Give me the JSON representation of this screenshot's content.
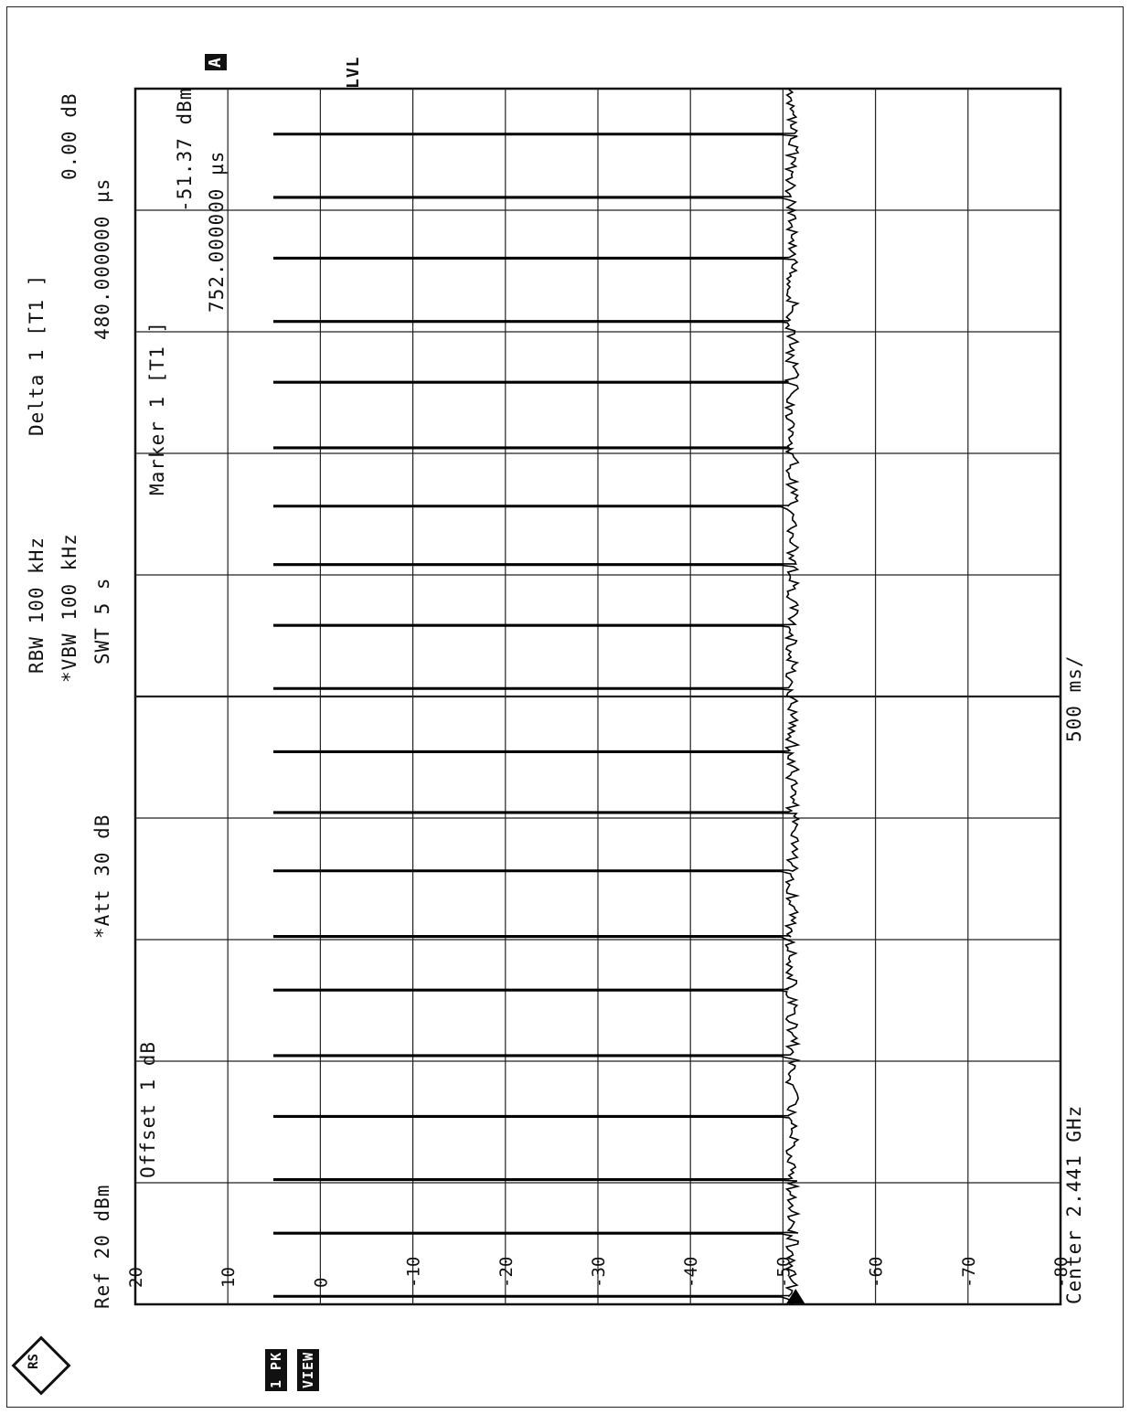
{
  "header": {
    "logo": "RS",
    "ref_level": "Ref  20 dBm",
    "offset": "Offset  1 dB",
    "att": "*Att  30 dB",
    "rbw": "RBW 100 kHz",
    "vbw": "*VBW 100 kHz",
    "swt": "SWT 5 s",
    "delta_marker": "Delta 1 [T1 ]",
    "delta_level": "0.00 dB",
    "delta_time": "480.000000 µs",
    "marker_label": "Marker 1 [T1 ]",
    "marker_level": "-51.37 dBm",
    "marker_time": "752.000000 µs",
    "trace_badge": "A",
    "lvl": "LVL",
    "trace_mode": "1 PK",
    "view": "VIEW"
  },
  "footer": {
    "center": "Center 2.441 GHz",
    "per_div": "500 ms/"
  },
  "chart_data": {
    "type": "line",
    "title": "",
    "xlabel": "Center 2.441 GHz",
    "ylabel": "",
    "x_unit": "ms",
    "x_range": [
      0,
      5000
    ],
    "x_per_div": 500,
    "ylim": [
      -80,
      20
    ],
    "y_unit": "dBm",
    "y_ticks": [
      {
        "value": 20,
        "label": "20"
      },
      {
        "value": 10,
        "label": "10"
      },
      {
        "value": 0,
        "label": "0"
      },
      {
        "value": -10,
        "label": "-10"
      },
      {
        "value": -20,
        "label": "-20"
      },
      {
        "value": -30,
        "label": "-30"
      },
      {
        "value": -40,
        "label": "-40"
      },
      {
        "value": -50,
        "label": "-50"
      },
      {
        "value": -60,
        "label": "-60"
      },
      {
        "value": -70,
        "label": "-70"
      },
      {
        "value": -80,
        "label": "-80"
      }
    ],
    "grid": true,
    "series": [
      {
        "noise_floor_dbm": -51,
        "burst_peak_dbm": 5,
        "burst_times_ms": [
          30,
          290,
          510,
          770,
          1020,
          1290,
          1510,
          1780,
          2020,
          2270,
          2530,
          2790,
          3040,
          3280,
          3520,
          3790,
          4040,
          4300,
          4550,
          4810
        ]
      }
    ],
    "marker": {
      "time": "752.000000 µs",
      "level_dbm": -51.37
    }
  }
}
